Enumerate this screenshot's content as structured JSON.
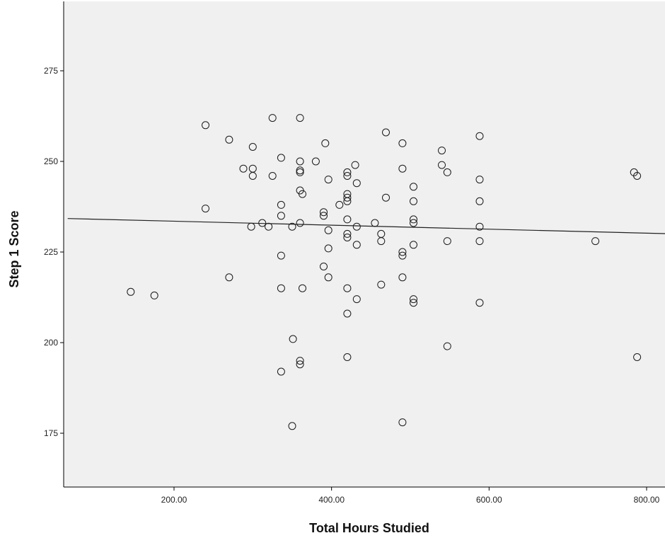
{
  "chart_data": {
    "type": "scatter",
    "title": "",
    "xlabel": "Total Hours Studied",
    "ylabel": "Step 1 Score",
    "xlim": [
      65,
      940
    ],
    "ylim": [
      160,
      290
    ],
    "x_ticks": [
      200,
      400,
      600,
      800
    ],
    "x_tick_labels": [
      "200.00",
      "400.00",
      "600.00",
      "800.00"
    ],
    "y_ticks": [
      175,
      200,
      225,
      250,
      275
    ],
    "y_tick_labels": [
      "175",
      "200",
      "225",
      "250",
      "275"
    ],
    "grid": false,
    "legend": "none",
    "plot_background": "#f0f0f0",
    "marker": "open-circle",
    "fit_line": {
      "type": "linear",
      "slope": -0.0055,
      "intercept": 234.6
    },
    "points": [
      [
        145,
        214
      ],
      [
        175,
        213
      ],
      [
        240,
        260
      ],
      [
        240,
        237
      ],
      [
        270,
        256
      ],
      [
        270,
        218
      ],
      [
        288,
        248
      ],
      [
        298,
        232
      ],
      [
        300,
        254
      ],
      [
        300,
        248
      ],
      [
        300,
        246
      ],
      [
        312,
        233
      ],
      [
        320,
        232
      ],
      [
        325,
        262
      ],
      [
        325,
        246
      ],
      [
        336,
        251
      ],
      [
        336,
        238
      ],
      [
        336,
        235
      ],
      [
        336,
        224
      ],
      [
        336,
        215
      ],
      [
        336,
        192
      ],
      [
        350,
        232
      ],
      [
        351,
        201
      ],
      [
        350,
        177
      ],
      [
        360,
        262
      ],
      [
        360,
        250
      ],
      [
        360,
        247.5
      ],
      [
        360,
        247
      ],
      [
        360,
        242
      ],
      [
        360,
        233
      ],
      [
        360,
        195
      ],
      [
        360,
        194
      ],
      [
        363,
        241
      ],
      [
        363,
        215
      ],
      [
        380,
        250
      ],
      [
        392,
        255
      ],
      [
        390,
        236
      ],
      [
        390,
        235
      ],
      [
        390,
        221
      ],
      [
        396,
        245
      ],
      [
        396,
        231
      ],
      [
        396,
        226
      ],
      [
        396,
        218
      ],
      [
        410,
        238
      ],
      [
        420,
        247
      ],
      [
        420,
        246
      ],
      [
        420,
        241
      ],
      [
        420,
        240
      ],
      [
        420,
        239
      ],
      [
        420,
        234
      ],
      [
        420,
        230
      ],
      [
        420,
        229
      ],
      [
        420,
        215
      ],
      [
        420,
        208
      ],
      [
        420,
        196
      ],
      [
        430,
        249
      ],
      [
        432,
        244
      ],
      [
        432,
        232
      ],
      [
        432,
        227
      ],
      [
        432,
        212
      ],
      [
        455,
        233
      ],
      [
        463,
        230
      ],
      [
        463,
        228
      ],
      [
        463,
        216
      ],
      [
        469,
        258
      ],
      [
        469,
        240
      ],
      [
        490,
        255
      ],
      [
        490,
        248
      ],
      [
        490,
        225
      ],
      [
        490,
        224
      ],
      [
        490,
        218
      ],
      [
        490,
        178
      ],
      [
        504,
        243
      ],
      [
        504,
        239
      ],
      [
        504,
        234
      ],
      [
        504,
        233
      ],
      [
        504,
        227
      ],
      [
        504,
        212
      ],
      [
        504,
        211
      ],
      [
        540,
        253
      ],
      [
        540,
        249
      ],
      [
        547,
        247
      ],
      [
        547,
        228
      ],
      [
        547,
        199
      ],
      [
        588,
        257
      ],
      [
        588,
        245
      ],
      [
        588,
        239
      ],
      [
        588,
        232
      ],
      [
        588,
        228
      ],
      [
        588,
        211
      ],
      [
        735,
        228
      ],
      [
        784,
        247
      ],
      [
        788,
        246
      ],
      [
        788,
        196
      ]
    ]
  }
}
